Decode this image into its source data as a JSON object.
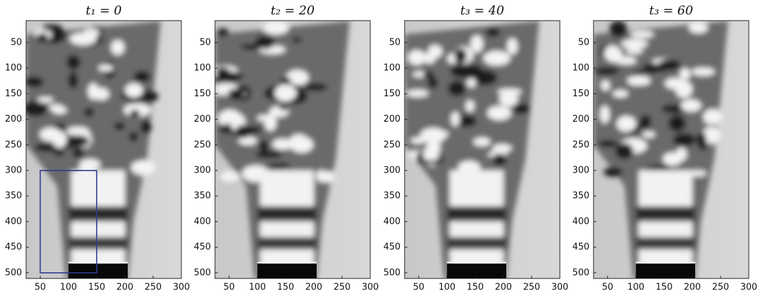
{
  "chart_data": [
    {
      "type": "image",
      "title": "t₁ = 0",
      "xlim": [
        25,
        300
      ],
      "ylim": [
        7,
        511
      ],
      "y_reversed": true,
      "xticks": [
        50,
        100,
        150,
        200,
        250,
        300
      ],
      "yticks": [
        50,
        100,
        150,
        200,
        250,
        300,
        350,
        400,
        450,
        500
      ],
      "rectangle": {
        "x": [
          50,
          150
        ],
        "y": [
          300,
          500
        ],
        "color": "#2e3a8c"
      }
    },
    {
      "type": "image",
      "title": "t₂ = 20",
      "xlim": [
        25,
        300
      ],
      "ylim": [
        7,
        511
      ],
      "y_reversed": true,
      "xticks": [
        50,
        100,
        150,
        200,
        250,
        300
      ],
      "yticks": [
        50,
        100,
        150,
        200,
        250,
        300,
        350,
        400,
        450,
        500
      ]
    },
    {
      "type": "image",
      "title": "t₃ = 40",
      "xlim": [
        25,
        300
      ],
      "ylim": [
        7,
        511
      ],
      "y_reversed": true,
      "xticks": [
        50,
        100,
        150,
        200,
        250,
        300
      ],
      "yticks": [
        50,
        100,
        150,
        200,
        250,
        300,
        350,
        400,
        450,
        500
      ]
    },
    {
      "type": "image",
      "title": "t₃ = 60",
      "xlim": [
        25,
        300
      ],
      "ylim": [
        7,
        511
      ],
      "y_reversed": true,
      "xticks": [
        50,
        100,
        150,
        200,
        250,
        300
      ],
      "yticks": [
        50,
        100,
        150,
        200,
        250,
        300,
        350,
        400,
        450,
        500
      ]
    }
  ]
}
